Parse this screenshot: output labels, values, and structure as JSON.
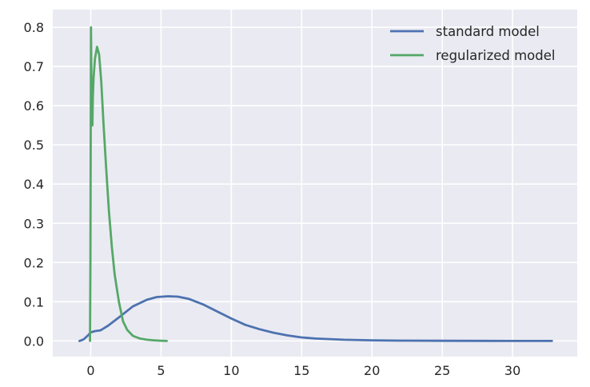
{
  "chart_data": {
    "type": "line",
    "title": "",
    "xlabel": "",
    "ylabel": "",
    "xlim": [
      -2.7,
      34.6
    ],
    "ylim": [
      -0.04,
      0.845
    ],
    "xticks": [
      0,
      5,
      10,
      15,
      20,
      25,
      30
    ],
    "yticks": [
      0.0,
      0.1,
      0.2,
      0.3,
      0.4,
      0.5,
      0.6,
      0.7,
      0.8
    ],
    "xtick_labels": [
      "0",
      "5",
      "10",
      "15",
      "20",
      "25",
      "30"
    ],
    "ytick_labels": [
      "0.0",
      "0.1",
      "0.2",
      "0.3",
      "0.4",
      "0.5",
      "0.6",
      "0.7",
      "0.8"
    ],
    "grid": true,
    "legend_position": "top-right",
    "background": "#eaeaf2",
    "series": [
      {
        "name": "standard model",
        "color": "#4c72b0",
        "x": [
          -0.8,
          -0.5,
          -0.2,
          0.0,
          0.3,
          0.7,
          1.2,
          2.0,
          3.0,
          4.0,
          4.7,
          5.5,
          6.2,
          7.0,
          8.0,
          9.0,
          10.0,
          11.0,
          12.0,
          13.0,
          14.0,
          15.0,
          16.0,
          18.0,
          20.0,
          22.0,
          25.0,
          28.0,
          30.0,
          32.8
        ],
        "y": [
          0.0,
          0.004,
          0.014,
          0.022,
          0.025,
          0.027,
          0.038,
          0.06,
          0.088,
          0.105,
          0.112,
          0.114,
          0.113,
          0.107,
          0.093,
          0.075,
          0.057,
          0.041,
          0.03,
          0.021,
          0.014,
          0.009,
          0.006,
          0.003,
          0.0015,
          0.0008,
          0.0003,
          0.0001,
          0.0,
          0.0
        ]
      },
      {
        "name": "regularized model",
        "color": "#55a868",
        "x": [
          -0.05,
          -0.02,
          0.0,
          0.02,
          0.04,
          0.06,
          0.08,
          0.1,
          0.12,
          0.15,
          0.2,
          0.3,
          0.45,
          0.6,
          0.75,
          0.9,
          1.1,
          1.3,
          1.5,
          1.7,
          2.0,
          2.3,
          2.6,
          3.0,
          3.5,
          4.0,
          4.5,
          5.0,
          5.4
        ],
        "y": [
          0.0,
          0.2,
          0.55,
          0.8,
          0.7,
          0.56,
          0.55,
          0.59,
          0.55,
          0.62,
          0.67,
          0.72,
          0.75,
          0.73,
          0.66,
          0.56,
          0.44,
          0.33,
          0.24,
          0.17,
          0.1,
          0.05,
          0.028,
          0.013,
          0.006,
          0.003,
          0.0015,
          0.0005,
          0.0
        ]
      }
    ]
  }
}
